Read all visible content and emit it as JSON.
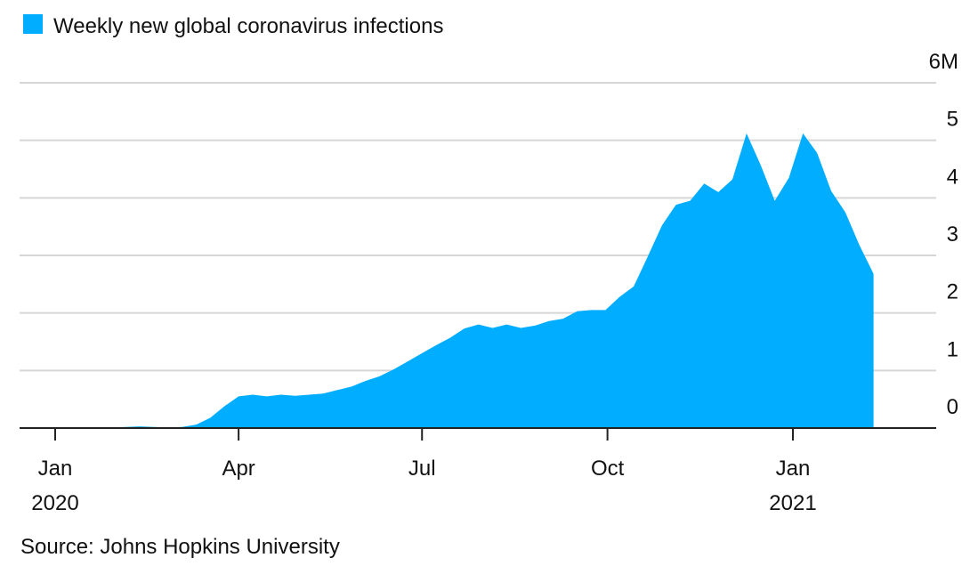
{
  "legend": {
    "label": "Weekly new global coronavirus infections",
    "color": "#00ADFE"
  },
  "source": "Source: Johns Hopkins University",
  "chart_data": {
    "type": "area",
    "ylim": [
      0,
      6
    ],
    "y_ticks": [
      {
        "value": 0,
        "label": "0"
      },
      {
        "value": 1,
        "label": "1"
      },
      {
        "value": 2,
        "label": "2"
      },
      {
        "value": 3,
        "label": "3"
      },
      {
        "value": 4,
        "label": "4"
      },
      {
        "value": 5,
        "label": "5"
      },
      {
        "value": 6,
        "label": "6M"
      }
    ],
    "x_ticks": [
      {
        "date": "2020-01-01",
        "label": "Jan",
        "year": "2020"
      },
      {
        "date": "2020-04-01",
        "label": "Apr",
        "year": ""
      },
      {
        "date": "2020-07-01",
        "label": "Jul",
        "year": ""
      },
      {
        "date": "2020-10-01",
        "label": "Oct",
        "year": ""
      },
      {
        "date": "2021-01-01",
        "label": "Jan",
        "year": "2021"
      }
    ],
    "grid": true,
    "series": [
      {
        "name": "Weekly new global coronavirus infections",
        "color": "#00ADFE",
        "points": [
          [
            "2020-01-22",
            0.0
          ],
          [
            "2020-01-29",
            0.01
          ],
          [
            "2020-02-05",
            0.02
          ],
          [
            "2020-02-12",
            0.03
          ],
          [
            "2020-02-19",
            0.02
          ],
          [
            "2020-02-26",
            0.01
          ],
          [
            "2020-03-04",
            0.02
          ],
          [
            "2020-03-11",
            0.06
          ],
          [
            "2020-03-18",
            0.18
          ],
          [
            "2020-03-25",
            0.38
          ],
          [
            "2020-04-01",
            0.55
          ],
          [
            "2020-04-08",
            0.58
          ],
          [
            "2020-04-15",
            0.55
          ],
          [
            "2020-04-22",
            0.58
          ],
          [
            "2020-04-29",
            0.56
          ],
          [
            "2020-05-06",
            0.58
          ],
          [
            "2020-05-13",
            0.6
          ],
          [
            "2020-05-20",
            0.66
          ],
          [
            "2020-05-27",
            0.72
          ],
          [
            "2020-06-03",
            0.82
          ],
          [
            "2020-06-10",
            0.9
          ],
          [
            "2020-06-17",
            1.02
          ],
          [
            "2020-06-24",
            1.16
          ],
          [
            "2020-07-01",
            1.3
          ],
          [
            "2020-07-08",
            1.44
          ],
          [
            "2020-07-15",
            1.57
          ],
          [
            "2020-07-22",
            1.73
          ],
          [
            "2020-07-29",
            1.8
          ],
          [
            "2020-08-05",
            1.74
          ],
          [
            "2020-08-12",
            1.8
          ],
          [
            "2020-08-19",
            1.74
          ],
          [
            "2020-08-26",
            1.78
          ],
          [
            "2020-09-02",
            1.86
          ],
          [
            "2020-09-09",
            1.9
          ],
          [
            "2020-09-16",
            2.03
          ],
          [
            "2020-09-23",
            2.05
          ],
          [
            "2020-09-30",
            2.05
          ],
          [
            "2020-10-07",
            2.28
          ],
          [
            "2020-10-14",
            2.46
          ],
          [
            "2020-10-21",
            2.98
          ],
          [
            "2020-10-28",
            3.52
          ],
          [
            "2020-11-04",
            3.88
          ],
          [
            "2020-11-11",
            3.95
          ],
          [
            "2020-11-18",
            4.25
          ],
          [
            "2020-11-25",
            4.1
          ],
          [
            "2020-12-02",
            4.32
          ],
          [
            "2020-12-09",
            5.12
          ],
          [
            "2020-12-16",
            4.57
          ],
          [
            "2020-12-23",
            3.95
          ],
          [
            "2020-12-30",
            4.35
          ],
          [
            "2021-01-06",
            5.12
          ],
          [
            "2021-01-13",
            4.78
          ],
          [
            "2021-01-20",
            4.12
          ],
          [
            "2021-01-27",
            3.75
          ],
          [
            "2021-02-03",
            3.18
          ],
          [
            "2021-02-10",
            2.68
          ]
        ]
      }
    ]
  }
}
